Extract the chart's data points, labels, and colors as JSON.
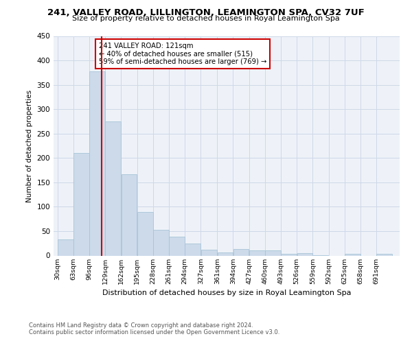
{
  "title": "241, VALLEY ROAD, LILLINGTON, LEAMINGTON SPA, CV32 7UF",
  "subtitle": "Size of property relative to detached houses in Royal Leamington Spa",
  "xlabel": "Distribution of detached houses by size in Royal Leamington Spa",
  "ylabel": "Number of detached properties",
  "footnote1": "Contains HM Land Registry data © Crown copyright and database right 2024.",
  "footnote2": "Contains public sector information licensed under the Open Government Licence v3.0.",
  "bar_color": "#ccdaea",
  "bar_edge_color": "#a8c4d8",
  "grid_color": "#cdd8e8",
  "background_color": "#eef2f8",
  "property_line_color": "#cc0000",
  "property_sqm": 121,
  "annotation_line1": "241 VALLEY ROAD: 121sqm",
  "annotation_line2": "← 40% of detached houses are smaller (515)",
  "annotation_line3": "59% of semi-detached houses are larger (769) →",
  "bin_labels": [
    "30sqm",
    "63sqm",
    "96sqm",
    "129sqm",
    "162sqm",
    "195sqm",
    "228sqm",
    "261sqm",
    "294sqm",
    "327sqm",
    "361sqm",
    "394sqm",
    "427sqm",
    "460sqm",
    "493sqm",
    "526sqm",
    "559sqm",
    "592sqm",
    "625sqm",
    "658sqm",
    "691sqm"
  ],
  "bin_edges": [
    30,
    63,
    96,
    129,
    162,
    195,
    228,
    261,
    294,
    327,
    361,
    394,
    427,
    460,
    493,
    526,
    559,
    592,
    625,
    658,
    691,
    724
  ],
  "bar_heights": [
    33,
    210,
    378,
    275,
    167,
    89,
    53,
    39,
    24,
    12,
    7,
    13,
    11,
    10,
    3,
    5,
    1,
    0,
    3,
    0,
    3
  ],
  "ylim": [
    0,
    450
  ],
  "yticks": [
    0,
    50,
    100,
    150,
    200,
    250,
    300,
    350,
    400,
    450
  ]
}
